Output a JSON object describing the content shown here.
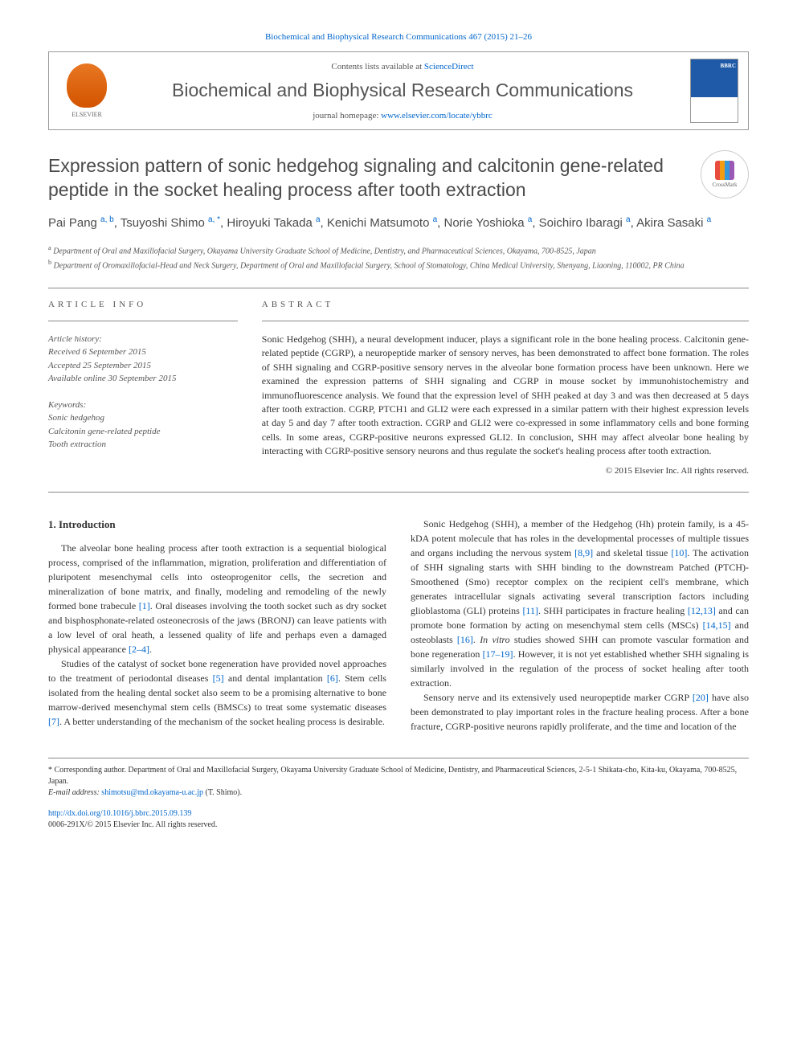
{
  "citation": {
    "prefix": "Biochemical and Biophysical Research Communications 467 (2015) 21–26",
    "link_text": "Biochemical and Biophysical Research Communications 467 (2015) 21–26"
  },
  "header": {
    "contents_text": "Contents lists available at ",
    "contents_link": "ScienceDirect",
    "journal": "Biochemical and Biophysical Research Communications",
    "homepage_label": "journal homepage: ",
    "homepage_url": "www.elsevier.com/locate/ybbrc",
    "elsevier": "ELSEVIER"
  },
  "crossmark": "CrossMark",
  "title": "Expression pattern of sonic hedgehog signaling and calcitonin gene-related peptide in the socket healing process after tooth extraction",
  "authors_html": "Pai Pang <sup>a, b</sup>, Tsuyoshi Shimo <sup>a, *</sup>, Hiroyuki Takada <sup>a</sup>, Kenichi Matsumoto <sup>a</sup>, Norie Yoshioka <sup>a</sup>, Soichiro Ibaragi <sup>a</sup>, Akira Sasaki <sup>a</sup>",
  "affiliations": [
    {
      "sup": "a",
      "text": " Department of Oral and Maxillofacial Surgery, Okayama University Graduate School of Medicine, Dentistry, and Pharmaceutical Sciences, Okayama, 700-8525, Japan"
    },
    {
      "sup": "b",
      "text": " Department of Oromaxillofacial-Head and Neck Surgery, Department of Oral and Maxillofacial Surgery, School of Stomatology, China Medical University, Shenyang, Liaoning, 110002, PR China"
    }
  ],
  "article_info": {
    "label": "ARTICLE INFO",
    "history_label": "Article history:",
    "history": [
      "Received 6 September 2015",
      "Accepted 25 September 2015",
      "Available online 30 September 2015"
    ],
    "keywords_label": "Keywords:",
    "keywords": [
      "Sonic hedgehog",
      "Calcitonin gene-related peptide",
      "Tooth extraction"
    ]
  },
  "abstract": {
    "label": "ABSTRACT",
    "text": "Sonic Hedgehog (SHH), a neural development inducer, plays a significant role in the bone healing process. Calcitonin gene-related peptide (CGRP), a neuropeptide marker of sensory nerves, has been demonstrated to affect bone formation. The roles of SHH signaling and CGRP-positive sensory nerves in the alveolar bone formation process have been unknown. Here we examined the expression patterns of SHH signaling and CGRP in mouse socket by immunohistochemistry and immunofluorescence analysis. We found that the expression level of SHH peaked at day 3 and was then decreased at 5 days after tooth extraction. CGRP, PTCH1 and GLI2 were each expressed in a similar pattern with their highest expression levels at day 5 and day 7 after tooth extraction. CGRP and GLI2 were co-expressed in some inflammatory cells and bone forming cells. In some areas, CGRP-positive neurons expressed GLI2. In conclusion, SHH may affect alveolar bone healing by interacting with CGRP-positive sensory neurons and thus regulate the socket's healing process after tooth extraction.",
    "copyright": "© 2015 Elsevier Inc. All rights reserved."
  },
  "intro": {
    "heading": "1. Introduction",
    "paragraphs": [
      "The alveolar bone healing process after tooth extraction is a sequential biological process, comprised of the inflammation, migration, proliferation and differentiation of pluripotent mesenchymal cells into osteoprogenitor cells, the secretion and mineralization of bone matrix, and finally, modeling and remodeling of the newly formed bone trabecule [1]. Oral diseases involving the tooth socket such as dry socket and bisphosphonate-related osteonecrosis of the jaws (BRONJ) can leave patients with a low level of oral heath, a lessened quality of life and perhaps even a damaged physical appearance [2–4].",
      "Studies of the catalyst of socket bone regeneration have provided novel approaches to the treatment of periodontal diseases [5] and dental implantation [6]. Stem cells isolated from the healing dental socket also seem to be a promising alternative to bone marrow-derived mesenchymal stem cells (BMSCs) to treat some systematic diseases [7]. A better understanding of the mechanism of the socket healing process is desirable.",
      "Sonic Hedgehog (SHH), a member of the Hedgehog (Hh) protein family, is a 45-kDA potent molecule that has roles in the developmental processes of multiple tissues and organs including the nervous system [8,9] and skeletal tissue [10]. The activation of SHH signaling starts with SHH binding to the downstream Patched (PTCH)-Smoothened (Smo) receptor complex on the recipient cell's membrane, which generates intracellular signals activating several transcription factors including glioblastoma (GLI) proteins [11]. SHH participates in fracture healing [12,13] and can promote bone formation by acting on mesenchymal stem cells (MSCs) [14,15] and osteoblasts [16]. In vitro studies showed SHH can promote vascular formation and bone regeneration [17–19]. However, it is not yet established whether SHH signaling is similarly involved in the regulation of the process of socket healing after tooth extraction.",
      "Sensory nerve and its extensively used neuropeptide marker CGRP [20] have also been demonstrated to play important roles in the fracture healing process. After a bone fracture, CGRP-positive neurons rapidly proliferate, and the time and location of the"
    ],
    "refs": [
      "[1]",
      "[2–4]",
      "[5]",
      "[6]",
      "[7]",
      "[8,9]",
      "[10]",
      "[11]",
      "[12,13]",
      "[14,15]",
      "[16]",
      "[17–19]",
      "[20]"
    ]
  },
  "footnote": {
    "corresponding": "* Corresponding author. Department of Oral and Maxillofacial Surgery, Okayama University Graduate School of Medicine, Dentistry, and Pharmaceutical Sciences, 2-5-1 Shikata-cho, Kita-ku, Okayama, 700-8525, Japan.",
    "email_label": "E-mail address: ",
    "email": "shimotsu@md.okayama-u.ac.jp",
    "email_suffix": " (T. Shimo)."
  },
  "footer": {
    "doi": "http://dx.doi.org/10.1016/j.bbrc.2015.09.139",
    "issn": "0006-291X/© 2015 Elsevier Inc. All rights reserved."
  },
  "colors": {
    "link": "#0066cc",
    "text": "#333",
    "muted": "#555"
  }
}
